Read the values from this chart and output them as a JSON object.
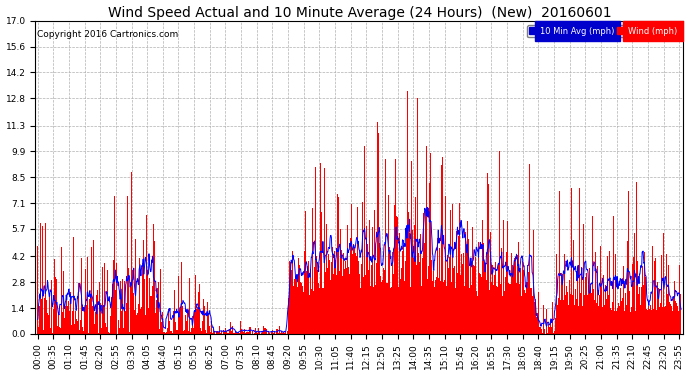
{
  "title": "Wind Speed Actual and 10 Minute Average (24 Hours)  (New)  20160601",
  "copyright": "Copyright 2016 Cartronics.com",
  "yticks": [
    0.0,
    1.4,
    2.8,
    4.2,
    5.7,
    7.1,
    8.5,
    9.9,
    11.3,
    12.8,
    14.2,
    15.6,
    17.0
  ],
  "ylim": [
    0.0,
    17.0
  ],
  "bar_color": "#ff0000",
  "line_color": "#0000ff",
  "background_color": "#ffffff",
  "grid_color": "#b0b0b0",
  "legend_labels": [
    "10 Min Avg (mph)",
    "Wind (mph)"
  ],
  "legend_colors": [
    "#0000cc",
    "#ff0000"
  ],
  "title_fontsize": 10,
  "tick_fontsize": 6.5,
  "copyright_fontsize": 6.5
}
